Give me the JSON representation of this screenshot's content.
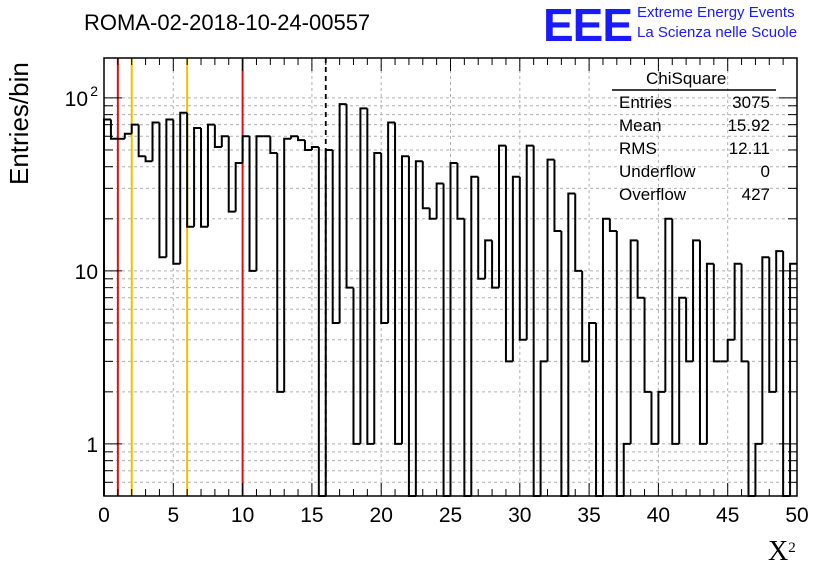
{
  "header": {
    "title": "ROMA-02-2018-10-24-00557",
    "logo_text": "EEE",
    "logo_line1": "Extreme Energy Events",
    "logo_line2": "La Scienza nelle Scuole"
  },
  "stats_box": {
    "title": "ChiSquare",
    "rows": [
      {
        "key": "Entries",
        "value": "3075"
      },
      {
        "key": "Mean",
        "value": "15.92"
      },
      {
        "key": "RMS",
        "value": "12.11"
      },
      {
        "key": "Underflow",
        "value": "0"
      },
      {
        "key": "Overflow",
        "value": "427"
      }
    ]
  },
  "colors": {
    "logo": "#1a1aff",
    "red_line": "#dd1111",
    "yellow_line": "#f0c000",
    "histogram": "#000000",
    "grid": "#b0b0b0"
  },
  "chart_data": {
    "type": "bar",
    "title": "ROMA-02-2018-10-24-00557",
    "xlabel": "X",
    "xlabel_sup": "2",
    "ylabel": "Entries/bin",
    "xlim": [
      0,
      50
    ],
    "ylim": [
      0.5,
      170
    ],
    "yscale": "log",
    "grid": true,
    "bin_width": 0.5,
    "x_ticks": [
      0,
      5,
      10,
      15,
      20,
      25,
      30,
      35,
      40,
      45,
      50
    ],
    "y_ticks": [
      {
        "value": 1,
        "label": "1"
      },
      {
        "value": 10,
        "label": "10"
      },
      {
        "value": 100,
        "label": "10",
        "sup": "2"
      }
    ],
    "bin_start": 0,
    "values": [
      75,
      58,
      58,
      62,
      70,
      46,
      43,
      72,
      12,
      75,
      11,
      82,
      18,
      67,
      18,
      70,
      52,
      60,
      22,
      42,
      60,
      10,
      60,
      60,
      48,
      2,
      58,
      60,
      57,
      50,
      52,
      0,
      50,
      5,
      92,
      8,
      1,
      87,
      1,
      48,
      5,
      72,
      1,
      46,
      0,
      43,
      23,
      20,
      32,
      0,
      42,
      20,
      0,
      35,
      9,
      15,
      8,
      53,
      3,
      35,
      4,
      53,
      0,
      3,
      44,
      17,
      0,
      28,
      10,
      3,
      5,
      0,
      20,
      17,
      0,
      1,
      15,
      7,
      2,
      1,
      2,
      20,
      1,
      7,
      3,
      15,
      1,
      11,
      3,
      3,
      4,
      11,
      3,
      0,
      1,
      12,
      2,
      13,
      0,
      11
    ],
    "vertical_lines": [
      {
        "x": 1,
        "color": "red",
        "style": "solid"
      },
      {
        "x": 2,
        "color": "yellow",
        "style": "solid"
      },
      {
        "x": 6,
        "color": "yellow",
        "style": "solid"
      },
      {
        "x": 10,
        "color": "red",
        "style": "solid"
      },
      {
        "x": 16,
        "color": "black",
        "style": "dashed"
      }
    ]
  }
}
